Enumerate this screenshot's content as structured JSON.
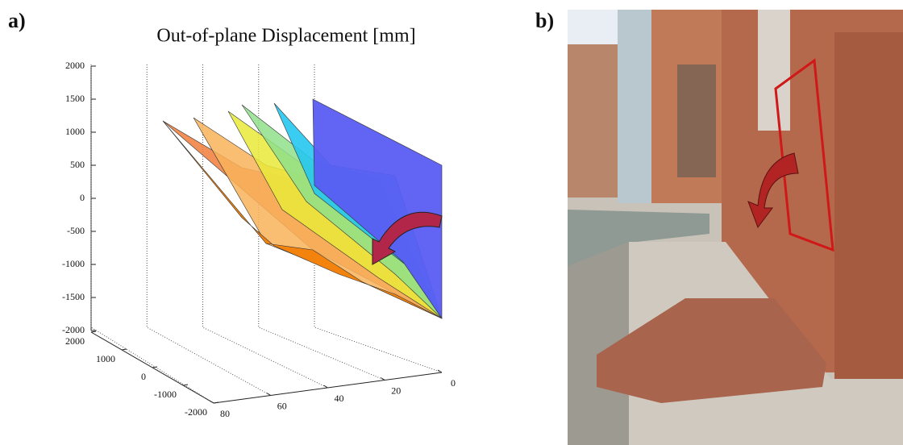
{
  "panel_a": {
    "label": "a)",
    "title": "Out-of-plane Displacement [mm]",
    "z_ticks": [
      2000,
      1500,
      1000,
      500,
      0,
      -500,
      -1000,
      -1500,
      -2000
    ],
    "y_ticks": [
      2000,
      1000,
      0,
      -1000,
      -2000
    ],
    "x_ticks": [
      80,
      60,
      40,
      20,
      0
    ]
  },
  "panel_b": {
    "label": "b)"
  }
}
